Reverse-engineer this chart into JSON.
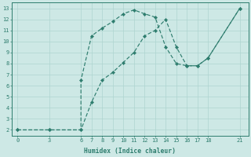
{
  "line1_x": [
    0,
    3,
    6,
    7,
    8,
    9,
    10,
    11,
    12,
    13,
    14,
    15,
    16,
    17,
    18,
    21
  ],
  "line1_y": [
    2,
    2,
    2,
    4.5,
    6.5,
    7.2,
    8.1,
    9.0,
    10.5,
    11.0,
    12.0,
    9.5,
    7.8,
    7.8,
    8.5,
    13.0
  ],
  "line2_x": [
    0,
    3,
    6,
    6,
    7,
    8,
    9,
    10,
    11,
    12,
    13,
    14,
    15,
    16,
    17,
    18,
    21
  ],
  "line2_y": [
    2,
    2,
    2,
    6.5,
    10.5,
    11.2,
    11.8,
    12.5,
    12.85,
    12.5,
    12.2,
    9.5,
    8.0,
    7.8,
    7.8,
    8.5,
    13.0
  ],
  "color": "#2e7d6e",
  "bg_color": "#cde8e5",
  "grid_color": "#aed4d0",
  "xlabel": "Humidex (Indice chaleur)",
  "xticks": [
    0,
    3,
    6,
    7,
    8,
    9,
    10,
    11,
    12,
    13,
    14,
    15,
    16,
    17,
    18,
    21
  ],
  "yticks": [
    2,
    3,
    4,
    5,
    6,
    7,
    8,
    9,
    10,
    11,
    12,
    13
  ],
  "xlim": [
    -0.5,
    21.8
  ],
  "ylim": [
    1.5,
    13.5
  ]
}
